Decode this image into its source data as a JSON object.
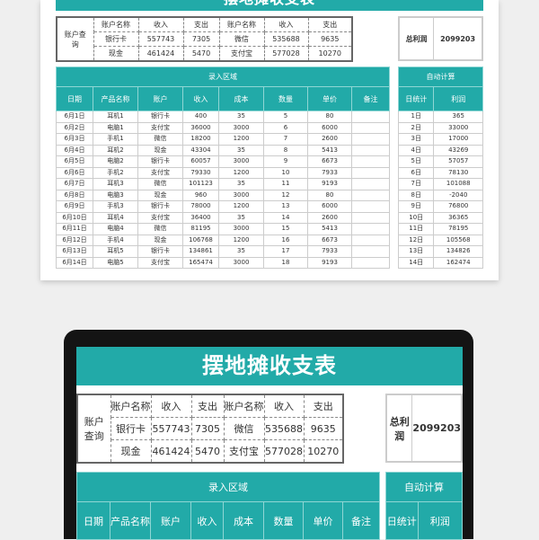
{
  "title": "摆地摊收支表",
  "query": {
    "label": "账户查询",
    "headers": [
      "账户名称",
      "收入",
      "支出",
      "账户名称",
      "收入",
      "支出"
    ],
    "rows": [
      [
        "银行卡",
        "557743",
        "7305",
        "微信",
        "535688",
        "9635"
      ],
      [
        "现金",
        "461424",
        "5470",
        "支付宝",
        "577028",
        "10270"
      ]
    ]
  },
  "total": {
    "label": "总利润",
    "value": "2099203"
  },
  "entry": {
    "band": "录入区域",
    "headers": [
      "日期",
      "产品名称",
      "账户",
      "收入",
      "成本",
      "数量",
      "单价",
      "备注"
    ],
    "rows": [
      [
        "6月1日",
        "耳机1",
        "银行卡",
        "400",
        "35",
        "5",
        "80",
        ""
      ],
      [
        "6月2日",
        "电脑1",
        "支付宝",
        "36000",
        "3000",
        "6",
        "6000",
        ""
      ],
      [
        "6月3日",
        "手机1",
        "微信",
        "18200",
        "1200",
        "7",
        "2600",
        ""
      ],
      [
        "6月4日",
        "耳机2",
        "现金",
        "43304",
        "35",
        "8",
        "5413",
        ""
      ],
      [
        "6月5日",
        "电脑2",
        "银行卡",
        "60057",
        "3000",
        "9",
        "6673",
        ""
      ],
      [
        "6月6日",
        "手机2",
        "支付宝",
        "79330",
        "1200",
        "10",
        "7933",
        ""
      ],
      [
        "6月7日",
        "耳机3",
        "微信",
        "101123",
        "35",
        "11",
        "9193",
        ""
      ],
      [
        "6月8日",
        "电脑3",
        "现金",
        "960",
        "3000",
        "12",
        "80",
        ""
      ],
      [
        "6月9日",
        "手机3",
        "银行卡",
        "78000",
        "1200",
        "13",
        "6000",
        ""
      ],
      [
        "6月10日",
        "耳机4",
        "支付宝",
        "36400",
        "35",
        "14",
        "2600",
        ""
      ],
      [
        "6月11日",
        "电脑4",
        "微信",
        "81195",
        "3000",
        "15",
        "5413",
        ""
      ],
      [
        "6月12日",
        "手机4",
        "现金",
        "106768",
        "1200",
        "16",
        "6673",
        ""
      ],
      [
        "6月13日",
        "耳机5",
        "银行卡",
        "134861",
        "35",
        "17",
        "7933",
        ""
      ],
      [
        "6月14日",
        "电脑5",
        "支付宝",
        "165474",
        "3000",
        "18",
        "9193",
        ""
      ]
    ]
  },
  "auto": {
    "band": "自动计算",
    "headers": [
      "日统计",
      "利润"
    ],
    "rows": [
      [
        "1日",
        "365"
      ],
      [
        "2日",
        "33000"
      ],
      [
        "3日",
        "17000"
      ],
      [
        "4日",
        "43269"
      ],
      [
        "5日",
        "57057"
      ],
      [
        "6日",
        "78130"
      ],
      [
        "7日",
        "101088"
      ],
      [
        "8日",
        "-2040"
      ],
      [
        "9日",
        "76800"
      ],
      [
        "10日",
        "36365"
      ],
      [
        "11日",
        "78195"
      ],
      [
        "12日",
        "105568"
      ],
      [
        "13日",
        "134826"
      ],
      [
        "14日",
        "162474"
      ]
    ]
  },
  "colors": {
    "accent": "#22aaa8"
  }
}
